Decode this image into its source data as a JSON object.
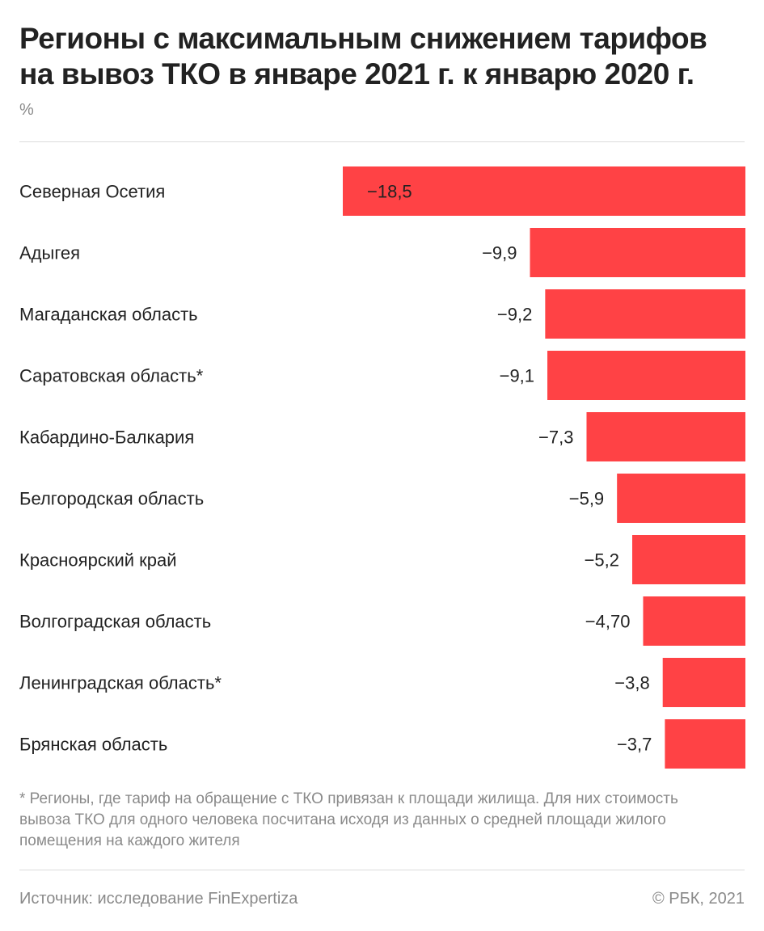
{
  "header": {
    "title": "Регионы с максимальным снижением тарифов на вывоз ТКО в январе 2021 г. к январю 2020 г.",
    "unit": "%"
  },
  "chart_data": {
    "type": "bar",
    "orientation": "horizontal",
    "categories": [
      "Северная Осетия",
      "Адыгея",
      "Магаданская область",
      "Саратовская область*",
      "Кабардино-Балкария",
      "Белгородская область",
      "Красноярский край",
      "Волгоградская область",
      "Ленинградская область*",
      "Брянская область"
    ],
    "values": [
      -18.5,
      -9.9,
      -9.2,
      -9.1,
      -7.3,
      -5.9,
      -5.2,
      -4.7,
      -3.8,
      -3.7
    ],
    "value_labels": [
      "−18,5",
      "−9,9",
      "−9,2",
      "−9,1",
      "−7,3",
      "−5,9",
      "−5,2",
      "−4,70",
      "−3,8",
      "−3,7"
    ],
    "xlim": [
      -18.5,
      0
    ],
    "bar_color": "#ff4245",
    "grid": false,
    "legend": "none"
  },
  "footnote": "* Регионы, где тариф на обращение с ТКО привязан к площади жилища. Для них стоимость вывоза ТКО для одного человека посчитана исходя из данных о средней площади жилого помещения на каждого жителя",
  "footer": {
    "source": "Источник:  исследование FinExpertiza",
    "copyright": "© РБК, 2021"
  }
}
